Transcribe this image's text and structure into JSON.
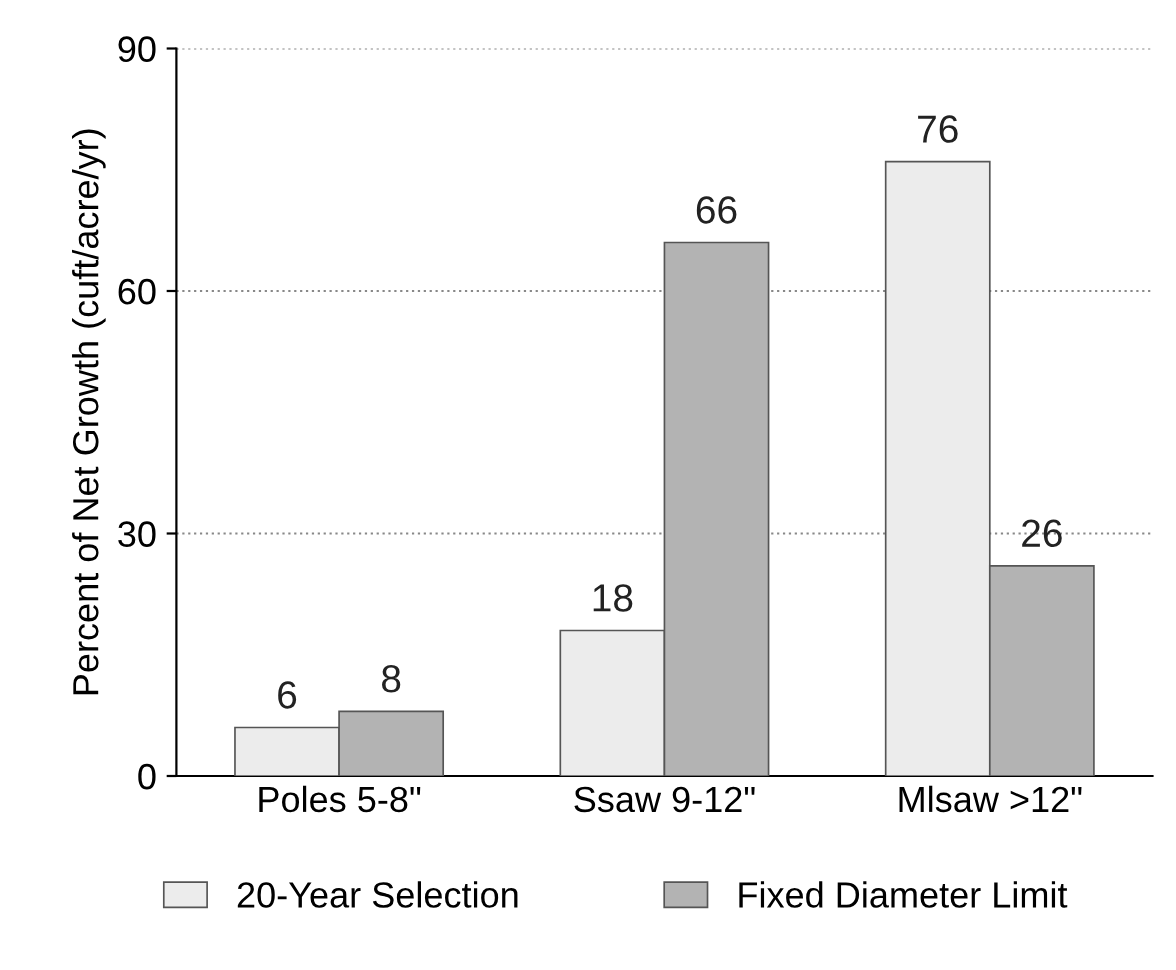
{
  "chart_data": {
    "type": "bar",
    "ylabel": "Percent of Net Growth (cuft/acre/yr)",
    "categories": [
      "Poles 5-8\"",
      "Ssaw 9-12\"",
      "Mlsaw >12\""
    ],
    "series": [
      {
        "name": "20-Year Selection",
        "color": "#ececec",
        "values": [
          6,
          18,
          76
        ]
      },
      {
        "name": "Fixed Diameter Limit",
        "color": "#b3b3b3",
        "values": [
          8,
          66,
          26
        ]
      }
    ],
    "ylim": [
      0,
      90
    ],
    "yticks": [
      0,
      30,
      60,
      90
    ],
    "grid": "y",
    "legend": "bottom",
    "data_labels": true
  }
}
